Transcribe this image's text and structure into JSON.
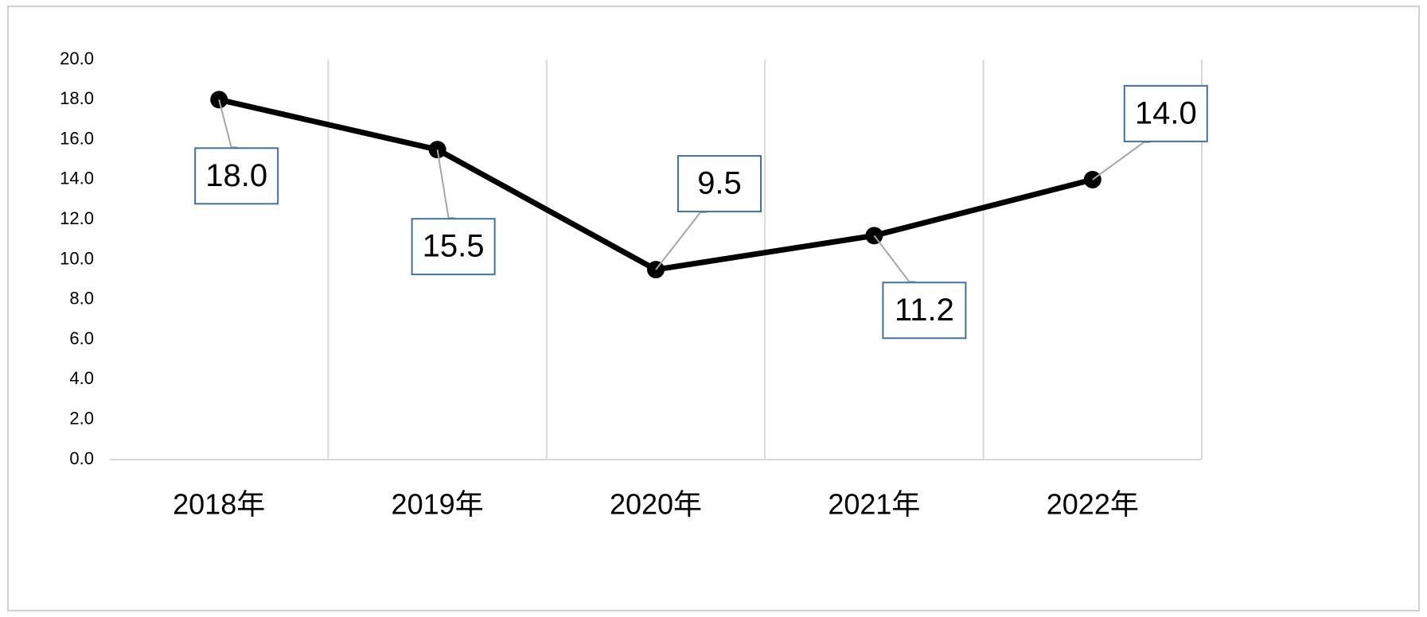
{
  "chart_data": {
    "type": "line",
    "categories": [
      "2018年",
      "2019年",
      "2020年",
      "2021年",
      "2022年"
    ],
    "series": [
      {
        "color": "#000000",
        "values": [
          18.0,
          15.5,
          9.5,
          11.2,
          14.0
        ],
        "value_labels": [
          "18.0",
          "15.5",
          "9.5",
          "11.2",
          "14.0"
        ]
      }
    ],
    "ylim": [
      0,
      20
    ],
    "yticks": [
      {
        "value": 0,
        "label": "0.0"
      },
      {
        "value": 2,
        "label": "2.0"
      },
      {
        "value": 4,
        "label": "4.0"
      },
      {
        "value": 6,
        "label": "6.0"
      },
      {
        "value": 8,
        "label": "8.0"
      },
      {
        "value": 10,
        "label": "10.0"
      },
      {
        "value": 12,
        "label": "12.0"
      },
      {
        "value": 14,
        "label": "14.0"
      },
      {
        "value": 16,
        "label": "16.0"
      },
      {
        "value": 18,
        "label": "18.0"
      },
      {
        "value": 20,
        "label": "20.0"
      }
    ],
    "grid": "x"
  }
}
